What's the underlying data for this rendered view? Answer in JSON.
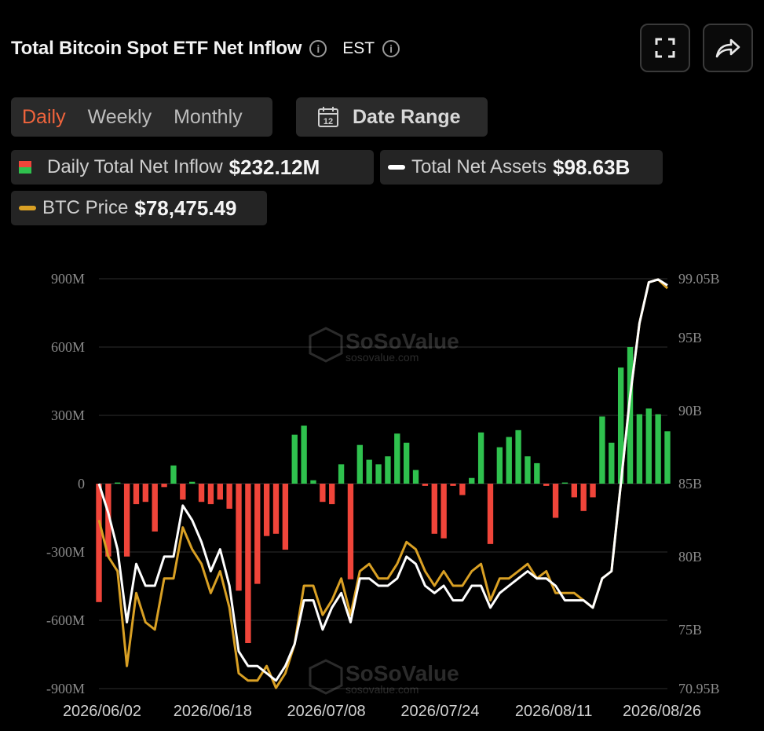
{
  "header": {
    "title": "Total Bitcoin Spot ETF Net Inflow",
    "timezone": "EST"
  },
  "tabs": [
    {
      "label": "Daily",
      "active": true
    },
    {
      "label": "Weekly",
      "active": false
    },
    {
      "label": "Monthly",
      "active": false
    }
  ],
  "date_range": {
    "label": "Date Range",
    "calendar_day": "12"
  },
  "legend": {
    "inflow": {
      "label": "Daily Total Net Inflow",
      "value": "$232.12M"
    },
    "assets": {
      "label": "Total Net Assets",
      "value": "$98.63B"
    },
    "price": {
      "label": "BTC Price",
      "value": "$78,475.49"
    }
  },
  "watermark": {
    "brand": "SoSoValue",
    "url": "sosovalue.com"
  },
  "colors": {
    "positive": "#2fc14e",
    "negative": "#f0453a",
    "assets_line": "#ffffff",
    "price_line": "#d9a024",
    "accent": "#f0643c"
  },
  "chart_data": {
    "type": "bar",
    "x_tick_labels": [
      "2026/06/02",
      "2026/06/18",
      "2026/07/08",
      "2026/07/24",
      "2026/08/11",
      "2026/08/26"
    ],
    "x_tick_index": [
      0,
      13,
      26,
      39,
      52,
      65
    ],
    "y_left": {
      "range": [
        -900,
        900
      ],
      "unit": "M",
      "tick_labels": [
        "900M",
        "600M",
        "300M",
        "0",
        "-300M",
        "-600M",
        "-900M"
      ],
      "tick_values": [
        900,
        600,
        300,
        0,
        -300,
        -600,
        -900
      ]
    },
    "y_right": {
      "range": [
        70.95,
        99.05
      ],
      "unit": "B",
      "tick_labels": [
        "99.05B",
        "95B",
        "90B",
        "85B",
        "80B",
        "75B",
        "70.95B"
      ],
      "tick_values": [
        99.05,
        95,
        90,
        85,
        80,
        75,
        70.95
      ]
    },
    "inflow_M": [
      -520,
      -320,
      5,
      -320,
      -90,
      -80,
      -210,
      -15,
      80,
      -70,
      8,
      -80,
      -90,
      -70,
      -110,
      -470,
      -700,
      -440,
      -230,
      -220,
      -290,
      215,
      255,
      15,
      -80,
      -90,
      85,
      -420,
      170,
      105,
      85,
      120,
      220,
      180,
      60,
      -10,
      -220,
      -240,
      -10,
      -50,
      25,
      225,
      -265,
      160,
      205,
      235,
      120,
      90,
      -10,
      -150,
      5,
      -60,
      -120,
      -60,
      295,
      180,
      510,
      600,
      305,
      330,
      305,
      230
    ],
    "net_assets_B": [
      85.0,
      83.0,
      80.5,
      75.5,
      79.5,
      78.0,
      78.0,
      80.0,
      80.0,
      83.5,
      82.5,
      81.0,
      79.0,
      80.5,
      78.0,
      73.5,
      72.5,
      72.5,
      72.0,
      71.5,
      72.5,
      74.0,
      77.0,
      77.0,
      75.0,
      76.5,
      77.5,
      75.5,
      78.5,
      78.5,
      78.0,
      78.0,
      78.5,
      80.0,
      79.5,
      78.0,
      77.5,
      78.0,
      77.0,
      77.0,
      78.0,
      78.0,
      76.5,
      77.5,
      78.0,
      78.5,
      79.0,
      78.5,
      78.5,
      78.0,
      77.0,
      77.0,
      77.0,
      76.5,
      78.5,
      79.0,
      85.0,
      91.0,
      96.0,
      98.8,
      99.0,
      98.6
    ],
    "btc_price_scaled_B": [
      82.5,
      80.0,
      79.0,
      72.5,
      77.5,
      75.5,
      75.0,
      78.5,
      78.5,
      82.0,
      80.5,
      79.5,
      77.5,
      79.0,
      76.5,
      72.0,
      71.5,
      71.5,
      72.5,
      71.0,
      72.0,
      74.0,
      78.0,
      78.0,
      76.0,
      77.0,
      78.5,
      76.0,
      79.0,
      79.5,
      78.5,
      78.5,
      79.5,
      81.0,
      80.5,
      79.0,
      78.0,
      79.0,
      78.0,
      78.0,
      79.0,
      79.5,
      77.0,
      78.5,
      78.5,
      79.0,
      79.5,
      78.5,
      79.0,
      77.5,
      77.5,
      77.5,
      77.0,
      76.5,
      78.5,
      79.0,
      85.0,
      91.0,
      96.0,
      98.8,
      99.0,
      98.4
    ]
  }
}
